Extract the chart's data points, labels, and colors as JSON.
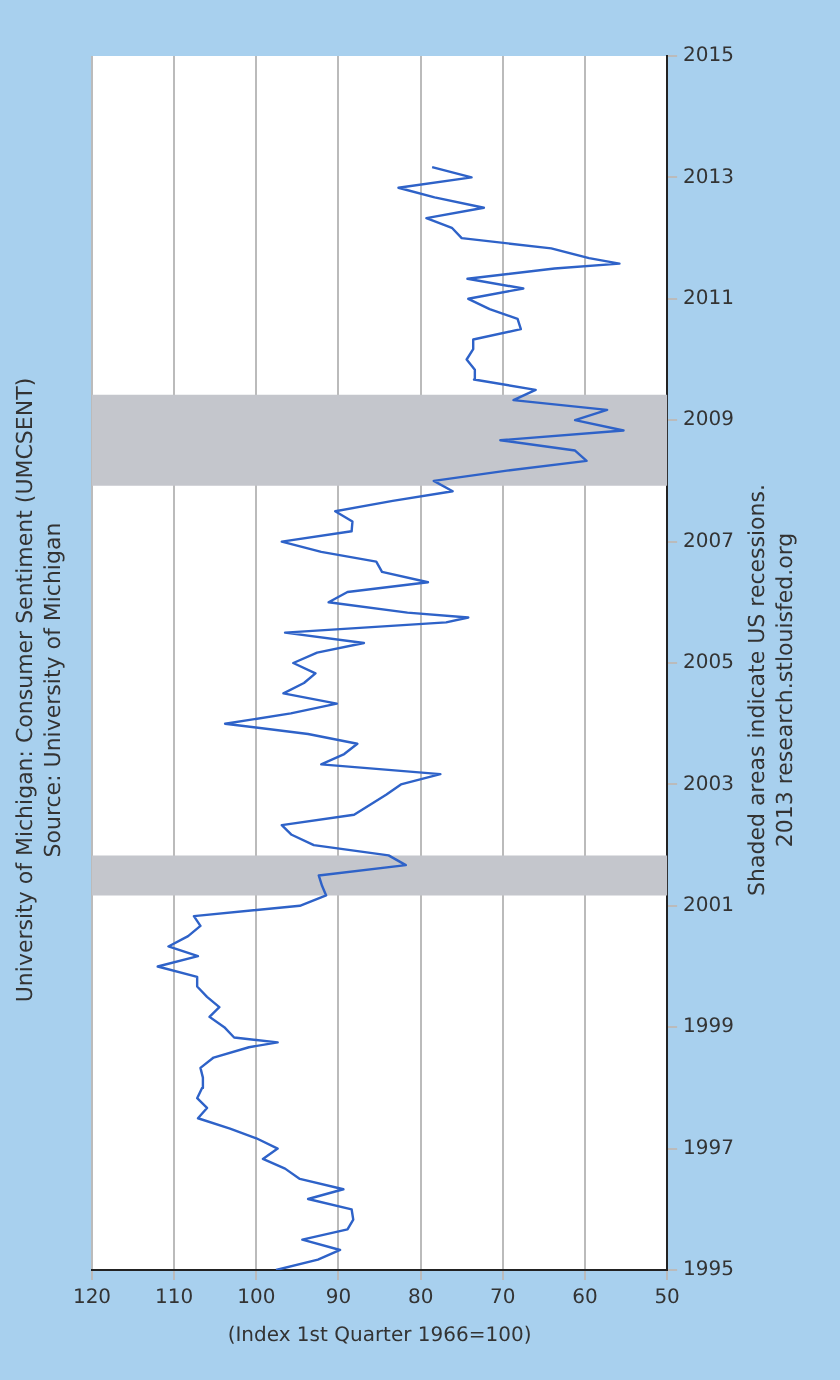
{
  "chart_data": {
    "type": "line",
    "title": "University of Michigan: Consumer Sentiment (UMCSENT)",
    "subtitle": "Source: University of Michigan",
    "xlabel": "(Index 1st Quarter 1966=100)",
    "annotations": [
      "Shaded areas indicate US recessions.",
      "2013 research.stlouisfed.org"
    ],
    "x": [
      97.6,
      92.5,
      89.8,
      94.4,
      88.9,
      88.2,
      88.4,
      93.7,
      89.4,
      94.7,
      96.5,
      99.2,
      97.4,
      100.0,
      103.2,
      107.1,
      106.0,
      107.2,
      106.6,
      106.5,
      106.8,
      105.2,
      100.9,
      97.4,
      102.7,
      103.9,
      105.7,
      104.5,
      106.0,
      107.2,
      107.2,
      112.0,
      107.1,
      110.7,
      108.3,
      106.8,
      107.6,
      94.7,
      91.5,
      92.0,
      92.4,
      81.8,
      83.9,
      93.0,
      95.7,
      96.9,
      88.1,
      86.1,
      84.2,
      82.4,
      77.6,
      92.1,
      89.3,
      87.7,
      93.7,
      103.8,
      95.8,
      90.2,
      96.7,
      94.2,
      92.8,
      95.5,
      92.6,
      86.9,
      96.5,
      76.9,
      74.2,
      81.6,
      91.2,
      88.9,
      79.1,
      84.7,
      85.4,
      92.1,
      96.9,
      88.4,
      88.3,
      90.4,
      83.4,
      76.1,
      78.4,
      69.5,
      59.8,
      61.2,
      70.3,
      55.3,
      61.2,
      57.3,
      68.7,
      66.0,
      73.5,
      73.4,
      74.4,
      73.6,
      73.6,
      67.8,
      68.2,
      71.6,
      74.2,
      67.5,
      74.3,
      63.7,
      55.8,
      59.5,
      64.1,
      75.0,
      76.2,
      79.3,
      72.3,
      78.3,
      82.7,
      73.8,
      78.6
    ],
    "series": [
      {
        "color": "#2e62c8",
        "values": [
          1995,
          1995.17,
          1995.33,
          1995.5,
          1995.67,
          1995.83,
          1996,
          1996.17,
          1996.33,
          1996.5,
          1996.67,
          1996.83,
          1997,
          1997.17,
          1997.33,
          1997.5,
          1997.67,
          1997.83,
          1998,
          1998.17,
          1998.33,
          1998.5,
          1998.67,
          1998.75,
          1998.83,
          1999,
          1999.17,
          1999.33,
          1999.5,
          1999.67,
          1999.83,
          2000,
          2000.17,
          2000.33,
          2000.5,
          2000.67,
          2000.83,
          2001,
          2001.17,
          2001.33,
          2001.5,
          2001.67,
          2001.83,
          2002,
          2002.17,
          2002.33,
          2002.5,
          2002.67,
          2002.83,
          2003,
          2003.17,
          2003.33,
          2003.5,
          2003.67,
          2003.83,
          2004,
          2004.17,
          2004.33,
          2004.5,
          2004.67,
          2004.83,
          2005,
          2005.17,
          2005.33,
          2005.5,
          2005.67,
          2005.75,
          2005.83,
          2006,
          2006.17,
          2006.33,
          2006.5,
          2006.67,
          2006.83,
          2007,
          2007.17,
          2007.33,
          2007.5,
          2007.67,
          2007.83,
          2008,
          2008.17,
          2008.33,
          2008.5,
          2008.67,
          2008.83,
          2009,
          2009.17,
          2009.33,
          2009.5,
          2009.67,
          2009.83,
          2010,
          2010.17,
          2010.33,
          2010.5,
          2010.67,
          2010.83,
          2011,
          2011.17,
          2011.33,
          2011.5,
          2011.58,
          2011.67,
          2011.83,
          2012,
          2012.17,
          2012.33,
          2012.5,
          2012.67,
          2012.83,
          2013,
          2013.17
        ]
      }
    ],
    "xlim": [
      120,
      50
    ],
    "xticks": [
      120,
      110,
      100,
      90,
      80,
      70,
      60,
      50
    ],
    "ylim": [
      1995,
      2015
    ],
    "yticks": [
      1995,
      1997,
      1999,
      2001,
      2003,
      2005,
      2007,
      2009,
      2011,
      2013,
      2015
    ],
    "bands": [
      {
        "axis": "y",
        "from": 2001.17,
        "to": 2001.83,
        "color": "#c4c6cc"
      },
      {
        "axis": "y",
        "from": 2007.92,
        "to": 2009.42,
        "color": "#c4c6cc"
      }
    ],
    "grid": "x",
    "marker": "none",
    "line_style": "solid",
    "legend": false
  }
}
